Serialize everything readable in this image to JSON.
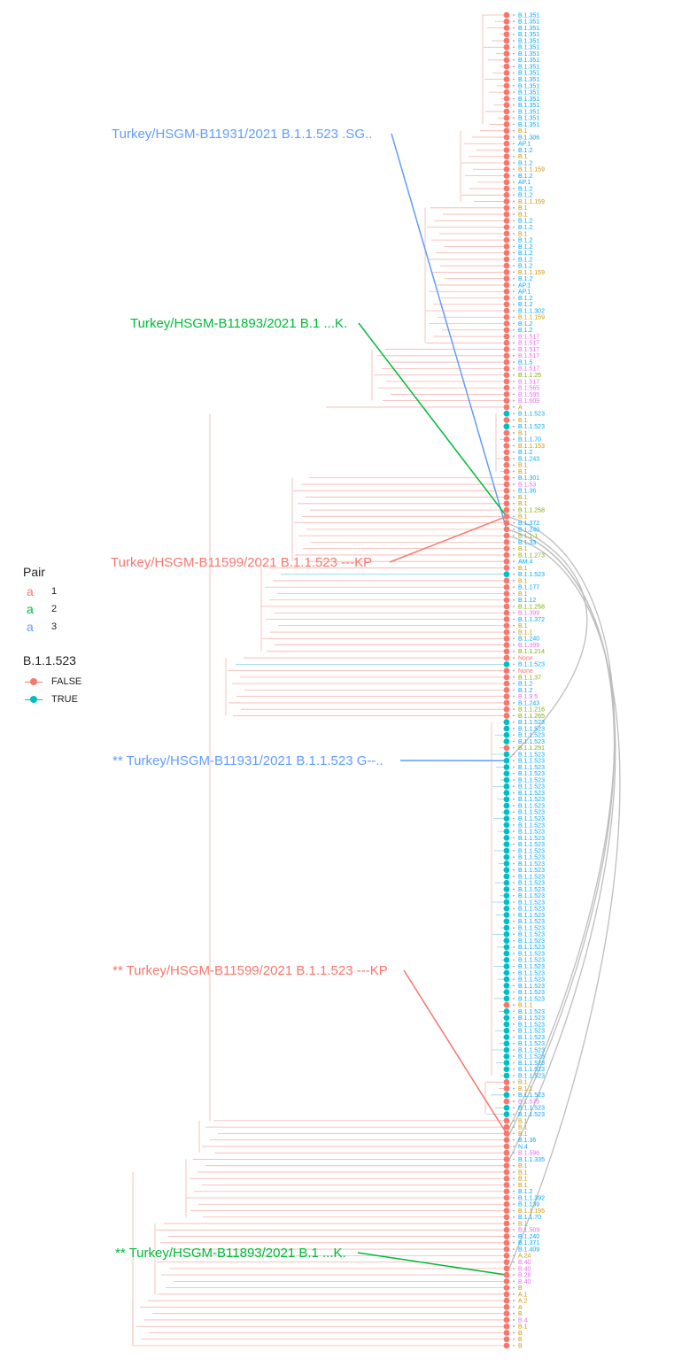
{
  "legend": {
    "pair": {
      "title": "Pair",
      "glyph": "a",
      "items": [
        {
          "label": "1",
          "color": "#F8766D"
        },
        {
          "label": "2",
          "color": "#00BA38"
        },
        {
          "label": "3",
          "color": "#619CFF"
        }
      ]
    },
    "marker": {
      "title": "B.1.1.523",
      "items": [
        {
          "label": "FALSE",
          "color": "#F8766D"
        },
        {
          "label": "TRUE",
          "color": "#00BFC4"
        }
      ]
    }
  },
  "annotations": [
    {
      "id": "ann-pair3-top",
      "text": "Turkey/HSGM-B11931/2021 B.1.1.523 .SG..",
      "pair": 3,
      "tip": 80
    },
    {
      "id": "ann-pair2-top",
      "text": "Turkey/HSGM-B11893/2021 B.1 ...K.",
      "pair": 2,
      "tip": 78
    },
    {
      "id": "ann-pair1-top",
      "text": "Turkey/HSGM-B11599/2021 B.1.1.523 ---KP",
      "pair": 1,
      "tip": 78
    },
    {
      "id": "ann-pair3-bottom",
      "text": "** Turkey/HSGM-B11931/2021 B.1.1.523 G--..",
      "pair": 3,
      "tip": 116
    },
    {
      "id": "ann-pair1-bottom",
      "text": "** Turkey/HSGM-B11599/2021 B.1.1.523 ---KP",
      "pair": 1,
      "tip": 174
    },
    {
      "id": "ann-pair2-bottom",
      "text": "** Turkey/HSGM-B11893/2021 B.1 ...K.",
      "pair": 2,
      "tip": 196
    }
  ],
  "connections": [
    {
      "from_tip": 78,
      "to_tip": 174
    },
    {
      "from_tip": 80,
      "to_tip": 175
    },
    {
      "from_tip": 81,
      "to_tip": 196
    },
    {
      "from_tip": 79,
      "to_tip": 116
    },
    {
      "from_tip": 80,
      "to_tip": 179
    }
  ],
  "tips": [
    "B.1.351",
    "B.1.351",
    "B.1.351",
    "B.1.351",
    "B.1.351",
    "B.1.351",
    "B.1.351",
    "B.1.351",
    "B.1.351",
    "B.1.351",
    "B.1.351",
    "B.1.351",
    "B.1.351",
    "B.1.351",
    "B.1.351",
    "B.1.351",
    "B.1.351",
    "B.1.351",
    "B.1",
    "B.1.306",
    "AP.1",
    "B.1.2",
    "B.1",
    "B.1.2",
    "B.1.1.159",
    "B.1.2",
    "AP.1",
    "B.1.2",
    "B.1.2",
    "B.1.1.159",
    "B.1",
    "B.1",
    "B.1.2",
    "B.1.2",
    "B.1",
    "B.1.2",
    "B.1.2",
    "B.1.2",
    "B.1.2",
    "B.1.2",
    "B.1.1.159",
    "B.1.2",
    "AP.1",
    "AP.1",
    "B.1.2",
    "B.1.2",
    "B.1.1.302",
    "B.1.1.159",
    "B.1.2",
    "B.1.2",
    "B.1.517",
    "B.1.517",
    "B.1.517",
    "B.1.517",
    "B.1.5",
    "B.1.517",
    "B.1.1.25",
    "B.1.517",
    "B.1.565",
    "B.1.595",
    "B.1.609",
    "A",
    "B.1.1.523",
    "B.1",
    "B.1.1.523",
    "B.1",
    "B.1.1.70",
    "B.1.1.153",
    "B.1.2",
    "B.1.243",
    "B.1",
    "B.1",
    "B.1.301",
    "B.1.53",
    "B.1.36",
    "B.1",
    "B.1",
    "B.1.1.258",
    "B.1",
    "B.1.372",
    "B.1.240",
    "B.1.1.1",
    "B.1.33",
    "B.1",
    "B.1.1.273",
    "AM.4",
    "B.1",
    "B.1.1.523",
    "B.1",
    "B.1.177",
    "B.1",
    "B.1.12",
    "B.1.1.258",
    "B.1.399",
    "B.1.1.372",
    "B.1",
    "B.1.1",
    "B.1.240",
    "B.1.399",
    "B.1.1.214",
    "None",
    "B.1.1.523",
    "None",
    "B.1.1.37",
    "B.1.2",
    "B.1.2",
    "B.1.9.5",
    "B.1.243",
    "B.1.1.216",
    "B.1.1.265",
    "B.1.1.523",
    "B.1.1.523",
    "B.1.1.523",
    "B.1.1.523",
    "B.1.1.291",
    "B.1.1.523",
    "B.1.1.523",
    "B.1.1.523",
    "B.1.1.523",
    "B.1.1.523",
    "B.1.1.523",
    "B.1.1.523",
    "B.1.1.523",
    "B.1.1.523",
    "B.1.1.523",
    "B.1.1.523",
    "B.1.1.523",
    "B.1.1.523",
    "B.1.1.523",
    "B.1.1.523",
    "B.1.1.523",
    "B.1.1.523",
    "B.1.1.523",
    "B.1.1.523",
    "B.1.1.523",
    "B.1.1.523",
    "B.1.1.523",
    "B.1.1.523",
    "B.1.1.523",
    "B.1.1.523",
    "B.1.1.523",
    "B.1.1.523",
    "B.1.1.523",
    "B.1.1.523",
    "B.1.1.523",
    "B.1.1.523",
    "B.1.1.523",
    "B.1.1.523",
    "B.1.1.523",
    "B.1.1.523",
    "B.1.1.523",
    "B.1.1.523",
    "B.1.1.523",
    "B.1.1.523",
    "B.1.1",
    "B.1.1.523",
    "B.1.1.523",
    "B.1.1.523",
    "B.1.1.523",
    "B.1.1.523",
    "B.1.1.523",
    "B.1.1.523",
    "B.1.1.523",
    "B.1.1.523",
    "B.1.1.523",
    "B.1.1.523",
    "B.1",
    "B.1.1",
    "B.1.1.523",
    "B.1.575",
    "B.1.1.523",
    "B.1.1.523",
    "B.1",
    "B.1",
    "B.1",
    "B.1.36",
    "N.4",
    "B.1.596",
    "B.1.1.335",
    "B.1",
    "B.1",
    "B.1",
    "B.1",
    "B.1.2",
    "B.1.1.392",
    "B.1.139",
    "B.1.1.195",
    "B.1.1.70",
    "B.1",
    "B.1.509",
    "B.1.240",
    "B.1.371",
    "B.1.409",
    "A.24",
    "B.40",
    "B.40",
    "B.28",
    "B.40",
    "B",
    "A.1",
    "A.2",
    "A",
    "B",
    "B.4",
    "B.1",
    "B",
    "B",
    "B"
  ],
  "true_tips": [
    62,
    64,
    87,
    101,
    110,
    111,
    112,
    113,
    115,
    116,
    117,
    118,
    119,
    120,
    121,
    122,
    123,
    124,
    125,
    126,
    127,
    128,
    129,
    130,
    131,
    132,
    133,
    134,
    135,
    136,
    137,
    138,
    139,
    140,
    141,
    142,
    143,
    144,
    145,
    146,
    147,
    148,
    149,
    150,
    151,
    152,
    153,
    155,
    156,
    157,
    158,
    159,
    160,
    161,
    162,
    163,
    164,
    165,
    168,
    170,
    171
  ]
}
